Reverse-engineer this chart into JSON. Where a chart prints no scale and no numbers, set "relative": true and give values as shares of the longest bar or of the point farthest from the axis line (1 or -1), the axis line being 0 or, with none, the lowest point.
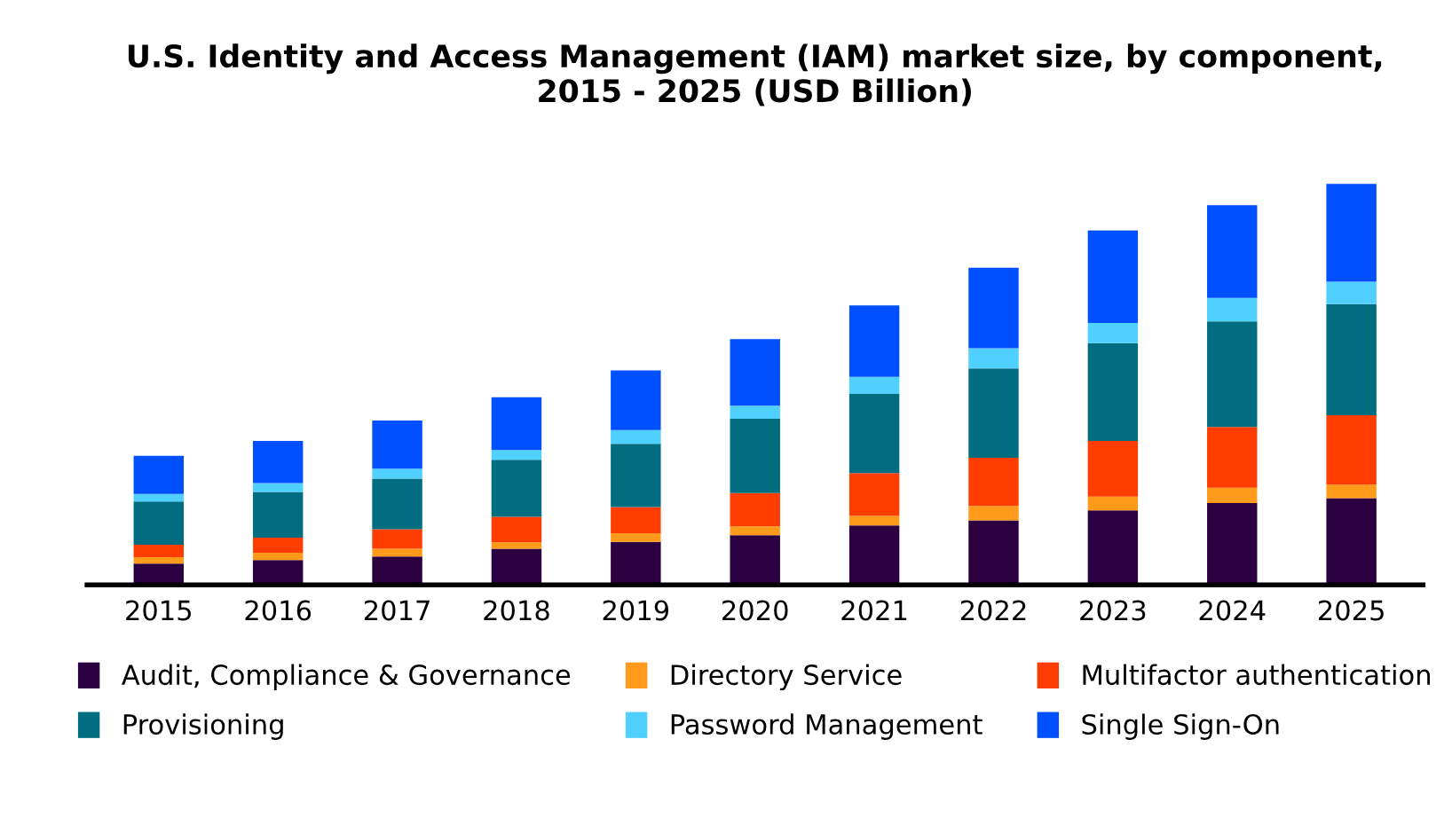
{
  "chart_data": {
    "type": "bar",
    "title": "U.S. Identity and Access Management (IAM) market size, by component,\n2015 - 2025 (USD Billion)",
    "categories": [
      "2015",
      "2016",
      "2017",
      "2018",
      "2019",
      "2020",
      "2021",
      "2022",
      "2023",
      "2024",
      "2025"
    ],
    "stacked": true,
    "relative": true,
    "legend": "bottom",
    "grid": false,
    "series": [
      {
        "name": "Audit, Compliance & Governance",
        "color": "#2a0040",
        "values": [
          0.053,
          0.062,
          0.071,
          0.09,
          0.107,
          0.124,
          0.148,
          0.161,
          0.186,
          0.204,
          0.216
        ]
      },
      {
        "name": "Directory Service",
        "color": "#ff9a1a",
        "values": [
          0.016,
          0.018,
          0.019,
          0.016,
          0.022,
          0.022,
          0.024,
          0.036,
          0.034,
          0.038,
          0.034
        ]
      },
      {
        "name": "Multifactor authentication",
        "color": "#ff3d00",
        "values": [
          0.031,
          0.038,
          0.049,
          0.064,
          0.065,
          0.083,
          0.107,
          0.12,
          0.139,
          0.152,
          0.173
        ]
      },
      {
        "name": "Provisioning",
        "color": "#006e80",
        "values": [
          0.108,
          0.114,
          0.126,
          0.142,
          0.158,
          0.185,
          0.197,
          0.223,
          0.244,
          0.263,
          0.277
        ]
      },
      {
        "name": "Password Management",
        "color": "#4fd0ff",
        "values": [
          0.019,
          0.022,
          0.025,
          0.024,
          0.034,
          0.033,
          0.043,
          0.05,
          0.05,
          0.059,
          0.056
        ]
      },
      {
        "name": "Single Sign-On",
        "color": "#0050ff",
        "values": [
          0.095,
          0.105,
          0.12,
          0.132,
          0.149,
          0.166,
          0.178,
          0.201,
          0.231,
          0.231,
          0.244
        ]
      }
    ]
  }
}
